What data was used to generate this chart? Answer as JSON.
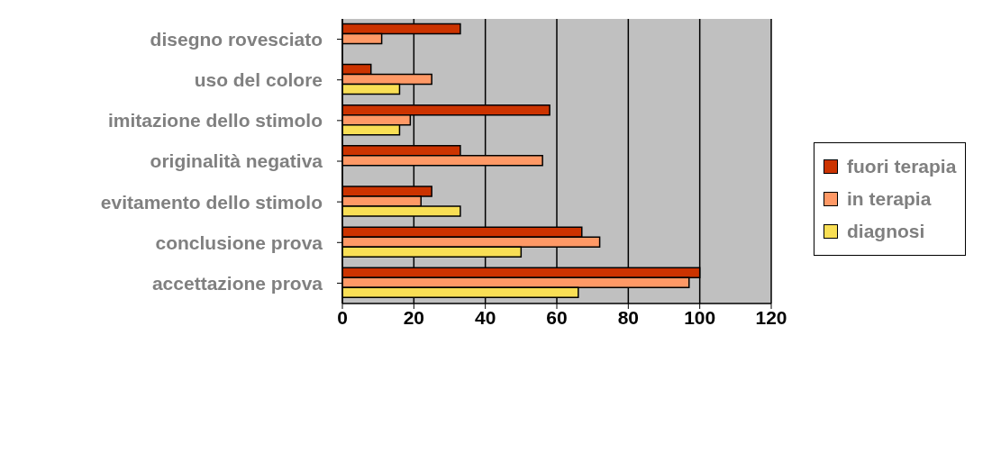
{
  "chart_data": {
    "type": "bar",
    "orientation": "horizontal",
    "categories": [
      "disegno rovesciato",
      "uso del colore",
      "imitazione dello stimolo",
      "originalità negativa",
      "evitamento dello stimolo",
      "conclusione prova",
      "accettazione prova"
    ],
    "series": [
      {
        "name": "fuori terapia",
        "color": "#cc3300",
        "values": [
          33,
          8,
          58,
          33,
          25,
          67,
          100
        ]
      },
      {
        "name": "in terapia",
        "color": "#ff9966",
        "values": [
          11,
          25,
          19,
          56,
          22,
          72,
          97
        ]
      },
      {
        "name": "diagnosi",
        "color": "#f9df55",
        "values": [
          null,
          16,
          16,
          null,
          33,
          50,
          66
        ]
      }
    ],
    "xlim": [
      0,
      120
    ],
    "xticks": [
      0,
      20,
      40,
      60,
      80,
      100,
      120
    ],
    "grid": "x",
    "legend": "right"
  }
}
